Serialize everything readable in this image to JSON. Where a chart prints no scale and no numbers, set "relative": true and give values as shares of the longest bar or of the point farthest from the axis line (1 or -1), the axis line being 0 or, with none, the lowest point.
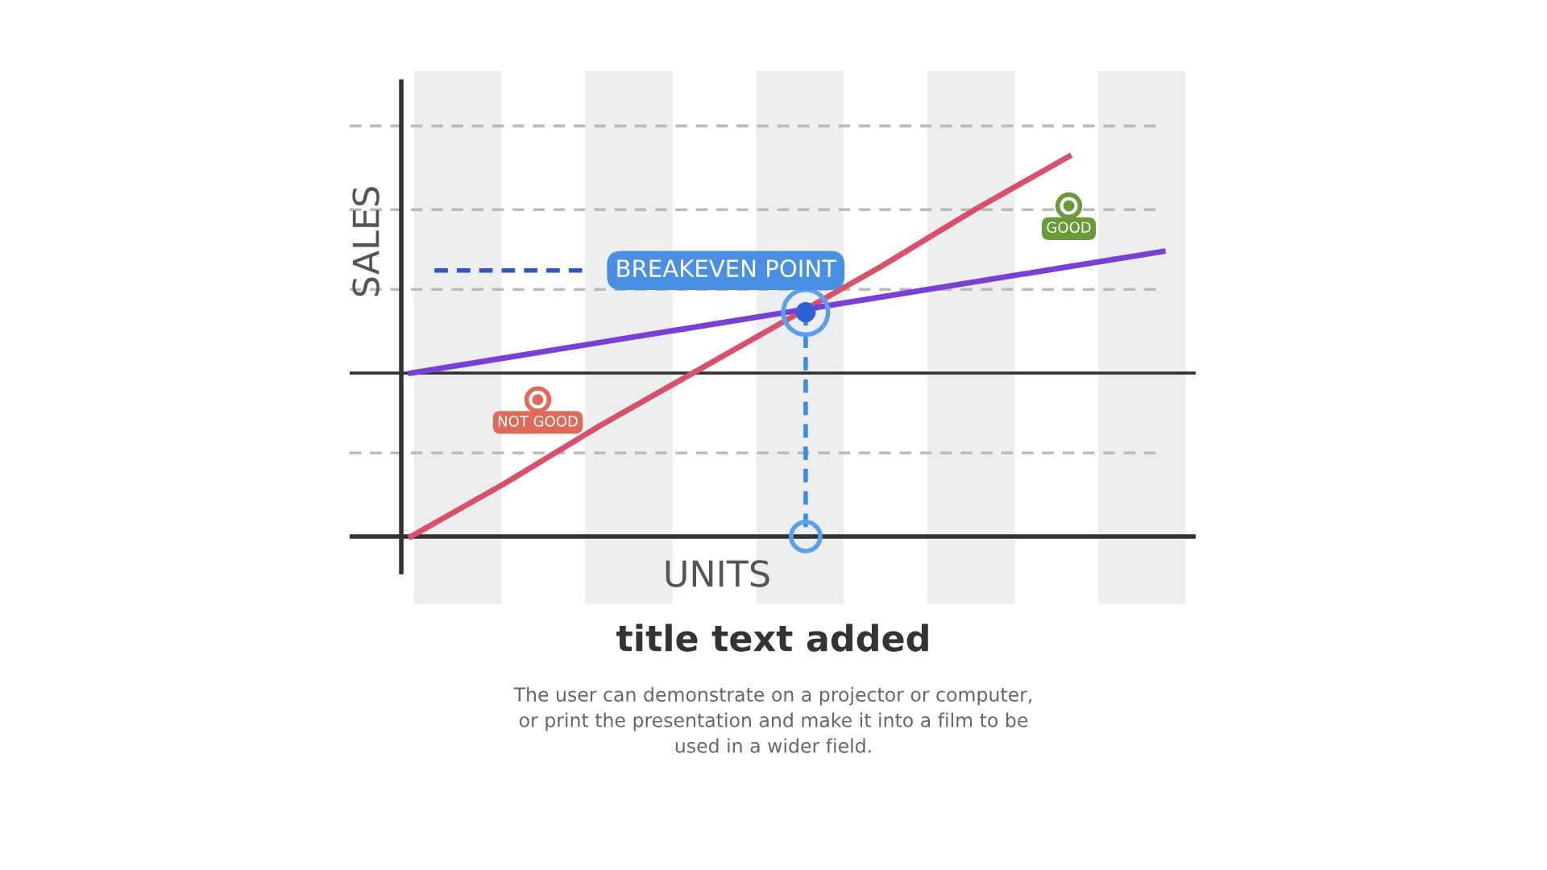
{
  "chart_data": {
    "type": "line",
    "relative": true,
    "title": "title text added",
    "subtitle": "The user can demonstrate on a projector or computer,\nor print the presentation and make it into a film to be\nused in a wider field.",
    "xlabel": "UNITS",
    "ylabel": "SALES",
    "categories": [
      null,
      null,
      null,
      null,
      null,
      null,
      null,
      null,
      null
    ],
    "series": [
      {
        "values": [
          0,
          0.14,
          0.29,
          0.43,
          0.57,
          0.71,
          0.86,
          1,
          null
        ],
        "color": "#d9506a"
      },
      {
        "values": [
          0.43,
          0.47,
          0.51,
          0.55,
          0.59,
          0.63,
          0.67,
          0.71,
          0.75
        ],
        "color": "#7a3fd6"
      }
    ],
    "ref_lines": [
      {
        "axis": "y",
        "value": 0.43,
        "label": null,
        "color": "#333333",
        "line_style": "solid"
      },
      {
        "axis": "y",
        "value": 1.08,
        "label": null,
        "color": "#bbbbbb",
        "line_style": "dashed"
      },
      {
        "axis": "y",
        "value": 0.86,
        "label": null,
        "color": "#bbbbbb",
        "line_style": "dashed"
      },
      {
        "axis": "y",
        "value": 0.65,
        "label": null,
        "color": "#bbbbbb",
        "line_style": "dashed"
      },
      {
        "axis": "y",
        "value": 0.22,
        "label": null,
        "color": "#bbbbbb",
        "line_style": "dashed"
      }
    ],
    "annotations": [
      {
        "text": "BREAKEVEN POINT",
        "y": 0.59
      },
      "NOT GOOD",
      "GOOD"
    ]
  }
}
